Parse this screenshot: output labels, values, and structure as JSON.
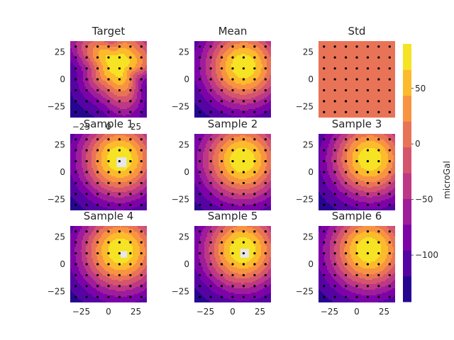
{
  "chart_data": {
    "type": "heatmap",
    "units": "microGal",
    "colormap": "plasma",
    "colorbar": {
      "label": "microGal",
      "range": [
        -142,
        90
      ],
      "ticks": [
        -100,
        -50,
        0,
        50
      ]
    },
    "axes": {
      "xlim": [
        -35,
        35
      ],
      "ylim": [
        -35,
        35
      ],
      "xticks": [
        -25,
        0,
        25
      ],
      "yticks": [
        -25,
        0,
        25
      ]
    },
    "grid": false,
    "station_grid": {
      "values": [
        -30,
        -20,
        -10,
        0,
        10,
        20,
        30
      ]
    },
    "panels": [
      {
        "title": "Target",
        "field": {
          "type": "target",
          "center": [
            8,
            14
          ],
          "peak": 84,
          "sigma": 25,
          "base": -140
        },
        "holes": [],
        "show_xticks": true
      },
      {
        "title": "Mean",
        "field": {
          "type": "bump",
          "center": [
            10,
            12
          ],
          "peak": 86,
          "sigma": 26,
          "base": -142
        },
        "holes": [],
        "show_xticks": false
      },
      {
        "title": "Std",
        "field": {
          "type": "constant",
          "value": 12
        },
        "holes": [],
        "show_xticks": false
      },
      {
        "title": "Sample 1",
        "field": {
          "type": "bump",
          "center": [
            10,
            12
          ],
          "peak": 88,
          "sigma": 26,
          "base": -142
        },
        "holes": [
          {
            "center": [
              12,
              9
            ],
            "size": 9
          }
        ],
        "show_xticks": false
      },
      {
        "title": "Sample 2",
        "field": {
          "type": "bump",
          "center": [
            9,
            11
          ],
          "peak": 86,
          "sigma": 27,
          "base": -142
        },
        "holes": [],
        "show_xticks": false
      },
      {
        "title": "Sample 3",
        "field": {
          "type": "bump",
          "center": [
            12,
            12
          ],
          "peak": 85,
          "sigma": 26,
          "base": -142
        },
        "holes": [],
        "show_xticks": false
      },
      {
        "title": "Sample 4",
        "field": {
          "type": "bump",
          "center": [
            11,
            12
          ],
          "peak": 87,
          "sigma": 27,
          "base": -142
        },
        "holes": [
          {
            "center": [
              14,
              9
            ],
            "size": 6
          }
        ],
        "show_xticks": true
      },
      {
        "title": "Sample 5",
        "field": {
          "type": "bump",
          "center": [
            9,
            13
          ],
          "peak": 89,
          "sigma": 26,
          "base": -142
        },
        "holes": [
          {
            "center": [
              11,
              10
            ],
            "size": 8
          }
        ],
        "show_xticks": true
      },
      {
        "title": "Sample 6",
        "field": {
          "type": "bump",
          "center": [
            11,
            13
          ],
          "peak": 86,
          "sigma": 27,
          "base": -142
        },
        "holes": [],
        "show_xticks": true
      }
    ]
  }
}
